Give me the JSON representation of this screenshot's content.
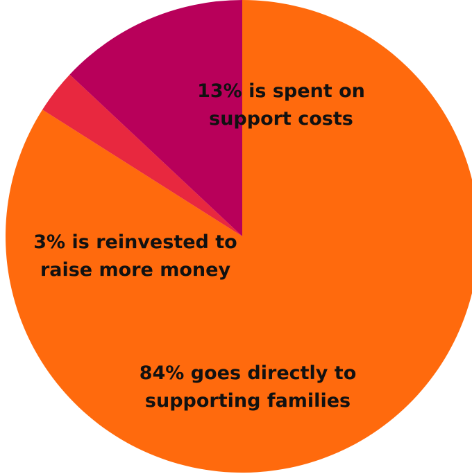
{
  "chart_data": {
    "type": "pie",
    "start_angle": "12 o'clock",
    "direction": "clockwise",
    "slices": [
      {
        "value": 84,
        "color": "#FF6A0D",
        "label_lines": [
          "84% goes directly to",
          "supporting families"
        ]
      },
      {
        "value": 3,
        "color": "#E8283F",
        "label_lines": [
          "3% is reinvested to",
          "raise more money"
        ]
      },
      {
        "value": 13,
        "color": "#B8005A",
        "label_lines": [
          "13% is spent on",
          "support costs"
        ]
      }
    ]
  }
}
